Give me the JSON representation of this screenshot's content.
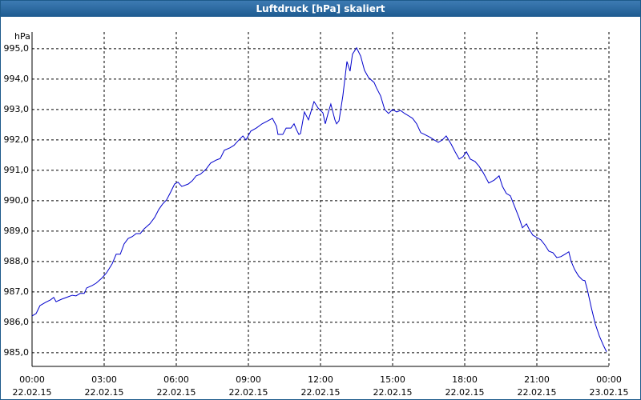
{
  "window_title": "Luftdruck [hPa] skaliert",
  "chart_data": {
    "type": "line",
    "y_unit_label": "hPa",
    "x": [
      0,
      0.17,
      0.33,
      0.57,
      0.77,
      0.9,
      1.0,
      1.23,
      1.5,
      1.67,
      1.83,
      2.0,
      2.17,
      2.27,
      2.5,
      2.67,
      2.9,
      3.1,
      3.33,
      3.5,
      3.67,
      3.83,
      4.0,
      4.17,
      4.33,
      4.5,
      4.67,
      4.9,
      5.1,
      5.27,
      5.43,
      5.6,
      5.77,
      5.93,
      6.07,
      6.23,
      6.5,
      6.67,
      6.83,
      7.0,
      7.23,
      7.43,
      7.67,
      7.83,
      8.0,
      8.23,
      8.4,
      8.57,
      8.77,
      8.9,
      9.1,
      9.33,
      9.57,
      9.77,
      10.0,
      10.17,
      10.23,
      10.43,
      10.57,
      10.77,
      10.9,
      11.0,
      11.1,
      11.17,
      11.33,
      11.5,
      11.73,
      11.9,
      12.1,
      12.2,
      12.33,
      12.43,
      12.6,
      12.67,
      12.77,
      12.93,
      13.1,
      13.23,
      13.33,
      13.5,
      13.67,
      13.83,
      14.0,
      14.23,
      14.33,
      14.5,
      14.67,
      14.83,
      15.0,
      15.17,
      15.33,
      15.5,
      15.67,
      15.83,
      16.0,
      16.17,
      16.33,
      16.57,
      16.73,
      16.9,
      17.07,
      17.23,
      17.43,
      17.6,
      17.77,
      17.93,
      18.07,
      18.23,
      18.43,
      18.6,
      18.77,
      19.0,
      19.23,
      19.43,
      19.57,
      19.73,
      19.9,
      20.07,
      20.27,
      20.4,
      20.57,
      20.67,
      20.83,
      21.0,
      21.17,
      21.33,
      21.5,
      21.67,
      21.83,
      22.0,
      22.17,
      22.33,
      22.43,
      22.57,
      22.73,
      22.9,
      23.0,
      23.1,
      23.27,
      23.43,
      23.6,
      23.77,
      23.9
    ],
    "series": [
      {
        "name": "Luftdruck",
        "color": "#0000cc",
        "values": [
          986.21,
          986.29,
          986.55,
          986.66,
          986.74,
          986.82,
          986.68,
          986.76,
          986.84,
          986.89,
          986.87,
          986.95,
          986.95,
          987.13,
          987.21,
          987.29,
          987.45,
          987.63,
          987.92,
          988.24,
          988.24,
          988.58,
          988.76,
          988.82,
          988.92,
          988.92,
          989.08,
          989.24,
          989.45,
          989.71,
          989.89,
          990.03,
          990.29,
          990.55,
          990.61,
          990.47,
          990.55,
          990.66,
          990.82,
          990.87,
          991.03,
          991.24,
          991.34,
          991.39,
          991.66,
          991.74,
          991.82,
          991.97,
          992.13,
          992.0,
          992.29,
          992.39,
          992.53,
          992.61,
          992.71,
          992.45,
          992.18,
          992.18,
          992.39,
          992.39,
          992.53,
          992.34,
          992.18,
          992.21,
          992.92,
          992.66,
          993.26,
          993.05,
          992.89,
          992.53,
          992.92,
          993.18,
          992.66,
          992.53,
          992.63,
          993.45,
          994.58,
          994.26,
          994.82,
          995.03,
          994.76,
          994.29,
          994.05,
          993.89,
          993.71,
          993.45,
          993.0,
          992.87,
          993.0,
          992.92,
          992.97,
          992.87,
          992.79,
          992.71,
          992.53,
          992.24,
          992.18,
          992.08,
          992.0,
          991.92,
          992.0,
          992.13,
          991.87,
          991.61,
          991.37,
          991.45,
          991.61,
          991.37,
          991.29,
          991.13,
          990.92,
          990.58,
          990.68,
          990.82,
          990.47,
          990.24,
          990.16,
          989.82,
          989.42,
          989.11,
          989.24,
          989.08,
          988.87,
          988.79,
          988.71,
          988.55,
          988.34,
          988.29,
          988.13,
          988.16,
          988.24,
          988.32,
          988.0,
          987.74,
          987.53,
          987.39,
          987.37,
          987.08,
          986.47,
          985.95,
          985.55,
          985.24,
          985.03
        ]
      }
    ],
    "xlim": [
      0,
      24
    ],
    "xticks": [
      {
        "value": 0,
        "label": [
          "00:00",
          "22.02.15"
        ]
      },
      {
        "value": 3,
        "label": [
          "03:00",
          "22.02.15"
        ]
      },
      {
        "value": 6,
        "label": [
          "06:00",
          "22.02.15"
        ]
      },
      {
        "value": 9,
        "label": [
          "09:00",
          "22.02.15"
        ]
      },
      {
        "value": 12,
        "label": [
          "12:00",
          "22.02.15"
        ]
      },
      {
        "value": 15,
        "label": [
          "15:00",
          "22.02.15"
        ]
      },
      {
        "value": 18,
        "label": [
          "18:00",
          "22.02.15"
        ]
      },
      {
        "value": 21,
        "label": [
          "21:00",
          "22.02.15"
        ]
      },
      {
        "value": 24,
        "label": [
          "00:00",
          "23.02.15"
        ]
      }
    ],
    "ylim": [
      984.55,
      995.55
    ],
    "yticks": [
      {
        "value": 985,
        "label": "985,0"
      },
      {
        "value": 986,
        "label": "986,0"
      },
      {
        "value": 987,
        "label": "987,0"
      },
      {
        "value": 988,
        "label": "988,0"
      },
      {
        "value": 989,
        "label": "989,0"
      },
      {
        "value": 990,
        "label": "990,0"
      },
      {
        "value": 991,
        "label": "991,0"
      },
      {
        "value": 992,
        "label": "992,0"
      },
      {
        "value": 993,
        "label": "993,0"
      },
      {
        "value": 994,
        "label": "994,0"
      },
      {
        "value": 995,
        "label": "995,0"
      }
    ],
    "grid": true
  }
}
